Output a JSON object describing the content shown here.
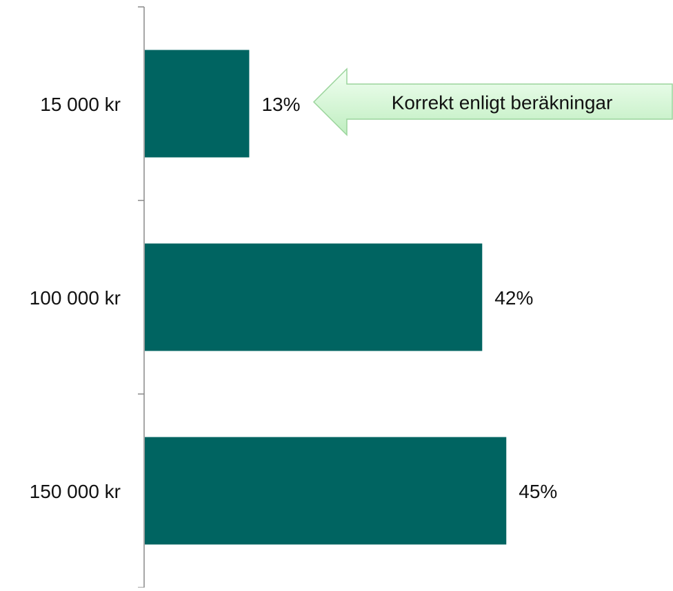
{
  "chart_data": {
    "type": "bar",
    "orientation": "horizontal",
    "categories": [
      "15 000 kr",
      "100 000 kr",
      "150 000 kr"
    ],
    "values": [
      13,
      42,
      45
    ],
    "value_labels": [
      "13%",
      "42%",
      "45%"
    ],
    "color": "#006461",
    "annotation": "Korrekt enligt beräkningar"
  }
}
